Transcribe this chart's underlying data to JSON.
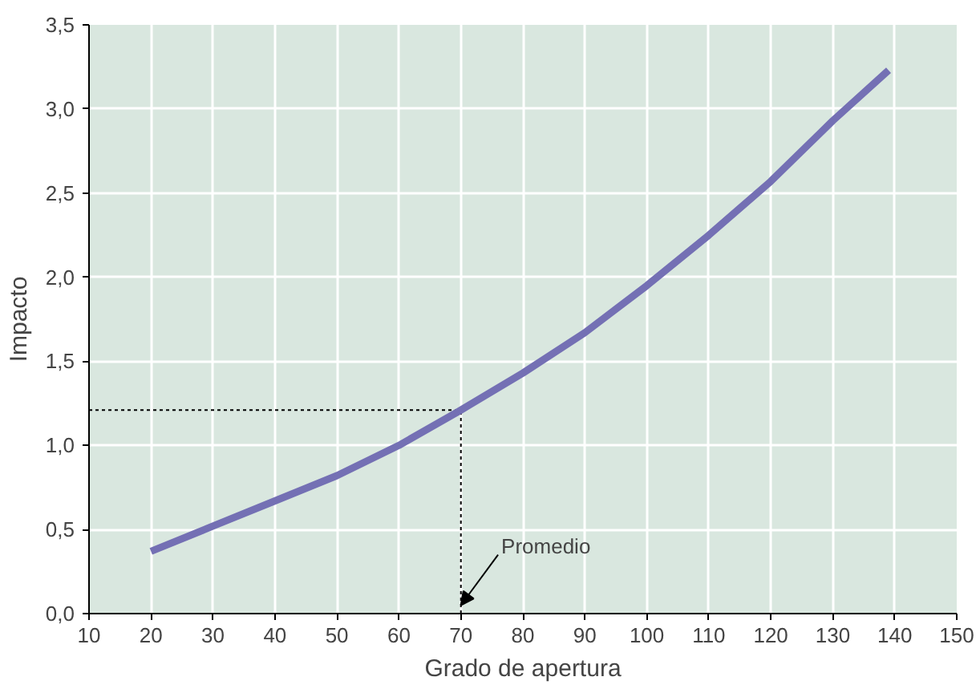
{
  "chart_data": {
    "type": "line",
    "xlabel": "Grado de apertura",
    "ylabel": "Impacto",
    "x": [
      20,
      30,
      40,
      50,
      60,
      70,
      80,
      90,
      100,
      110,
      120,
      130,
      139
    ],
    "series": [
      {
        "color": "#7470b4",
        "values": [
          0.37,
          0.52,
          0.67,
          0.82,
          1.0,
          1.21,
          1.43,
          1.67,
          1.95,
          2.25,
          2.57,
          2.93,
          3.23
        ]
      }
    ],
    "xlim": [
      10,
      150
    ],
    "xticks": [
      10,
      20,
      30,
      40,
      50,
      60,
      70,
      80,
      90,
      100,
      110,
      120,
      130,
      140,
      150
    ],
    "ylim": [
      0,
      3.5
    ],
    "yticks": [
      {
        "value": 0,
        "label": "0,0"
      },
      {
        "value": 0.5,
        "label": "0,5"
      },
      {
        "value": 1,
        "label": "1,0"
      },
      {
        "value": 1.5,
        "label": "1,5"
      },
      {
        "value": 2,
        "label": "2,0"
      },
      {
        "value": 2.5,
        "label": "2,5"
      },
      {
        "value": 3,
        "label": "3,0"
      },
      {
        "value": 3.5,
        "label": "3,5"
      }
    ],
    "ref_lines": [
      {
        "axis": "y",
        "value": 1.21,
        "line_style": "dotted",
        "color": "#000000"
      },
      {
        "axis": "x",
        "value": 70,
        "line_style": "dotted",
        "color": "#000000"
      }
    ],
    "annotations": [
      {
        "text": "Promedio",
        "x": 70,
        "y": 0.05
      }
    ],
    "grid": true,
    "marker": "none",
    "line_style": "solid"
  }
}
